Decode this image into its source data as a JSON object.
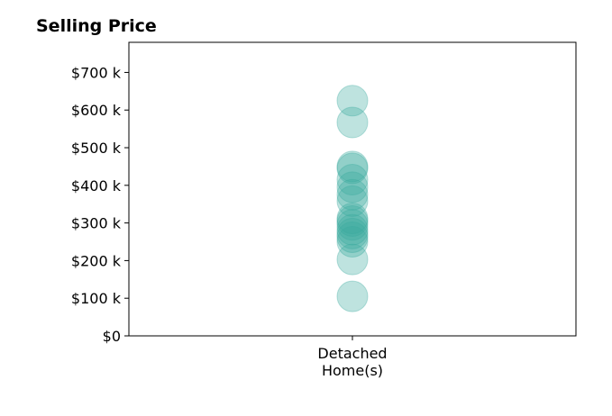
{
  "chart_data": {
    "type": "scatter",
    "title": "Selling Price",
    "xlabel": "",
    "ylabel": "",
    "categories": [
      "Detached\nHome(s)"
    ],
    "category_lines": [
      "Detached",
      "Home(s)"
    ],
    "yticks": [
      0,
      100000,
      200000,
      300000,
      400000,
      500000,
      600000,
      700000
    ],
    "ytick_labels": [
      "$0",
      "$100 k",
      "$200 k",
      "$300 k",
      "$400 k",
      "$500 k",
      "$600 k",
      "$700 k"
    ],
    "ylim": [
      0,
      780000
    ],
    "grid": false,
    "legend": "none",
    "series": [
      {
        "category": "Detached\nHome(s)",
        "values": [
          105000,
          203000,
          250000,
          262000,
          272000,
          282000,
          295000,
          305000,
          312000,
          358000,
          375000,
          395000,
          415000,
          445000,
          450000,
          567000,
          625000
        ]
      }
    ],
    "colors": {
      "marker": "#3aa99f",
      "marker_opacity": 0.33,
      "axis": "#000000",
      "background": "#ffffff"
    }
  }
}
